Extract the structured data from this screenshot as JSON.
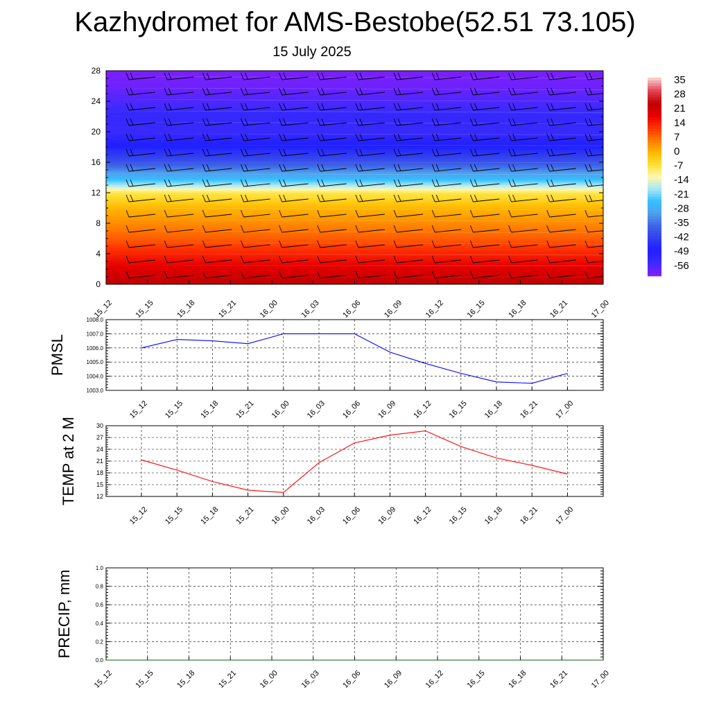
{
  "header": {
    "title": "Kazhydromet for AMS-Bestobe(52.51 73.105)",
    "subtitle": "15 July 2025"
  },
  "chart_data": [
    {
      "type": "heatmap",
      "title": "",
      "xlabel": "",
      "ylabel": "",
      "x": [
        "15_12",
        "15_15",
        "15_18",
        "15_21",
        "16_00",
        "16_03",
        "16_06",
        "16_09",
        "16_12",
        "16_15",
        "16_18",
        "16_21",
        "17_00"
      ],
      "y_ticks": [
        0,
        4,
        8,
        12,
        16,
        20,
        24,
        28
      ],
      "ylim": [
        0,
        28
      ],
      "colorbar_labels": [
        "35",
        "28",
        "21",
        "14",
        "7",
        "0",
        "-7",
        "-14",
        "-21",
        "-28",
        "-35",
        "-42",
        "-49",
        "-56"
      ],
      "colorbar_values": [
        35,
        28,
        21,
        14,
        7,
        0,
        -7,
        -14,
        -21,
        -28,
        -35,
        -42,
        -49,
        -56
      ],
      "colormap": [
        "#7a1fff",
        "#3a2bff",
        "#1f1fff",
        "#3340f0",
        "#3f66e6",
        "#4fa0ee",
        "#33c0ff",
        "#a8e6f6",
        "#fff9b0",
        "#ffe033",
        "#ffb800",
        "#ff7a00",
        "#ff3300",
        "#e60000",
        "#c00000",
        "#e04050",
        "#f8c8c8"
      ],
      "temperature_profile": [
        {
          "level": 0,
          "value": 24
        },
        {
          "level": 2,
          "value": 19
        },
        {
          "level": 4,
          "value": 14
        },
        {
          "level": 6,
          "value": 9
        },
        {
          "level": 8,
          "value": 5
        },
        {
          "level": 10,
          "value": 1
        },
        {
          "level": 12,
          "value": -6
        },
        {
          "level": 13,
          "value": -16
        },
        {
          "level": 14,
          "value": -24
        },
        {
          "level": 16,
          "value": -36
        },
        {
          "level": 18,
          "value": -44
        },
        {
          "level": 20,
          "value": -50
        },
        {
          "level": 22,
          "value": -49
        },
        {
          "level": 24,
          "value": -52
        },
        {
          "level": 26,
          "value": -55
        },
        {
          "level": 28,
          "value": -56
        }
      ],
      "wind_barbs": true,
      "grid": false
    },
    {
      "type": "line",
      "title": "",
      "xlabel": "",
      "ylabel": "PMSL",
      "x": [
        "15_12",
        "15_15",
        "15_18",
        "15_21",
        "16_00",
        "16_03",
        "16_06",
        "16_09",
        "16_12",
        "16_15",
        "16_18",
        "16_21",
        "17_00"
      ],
      "y_ticks": [
        "1003.0",
        "1004.0",
        "1005.0",
        "1006.0",
        "1007.0",
        "1008.0"
      ],
      "ylim": [
        1003,
        1008
      ],
      "series": [
        {
          "values": [
            1006.0,
            1006.6,
            1006.5,
            1006.3,
            1007.0,
            1007.0,
            1007.0,
            1005.7,
            1004.9,
            1004.2,
            1003.6,
            1003.5,
            1004.2
          ],
          "color": "#0000ff"
        }
      ],
      "grid": true
    },
    {
      "type": "line",
      "title": "",
      "xlabel": "",
      "ylabel": "TEMP at 2 M",
      "x": [
        "15_12",
        "15_15",
        "15_18",
        "15_21",
        "16_00",
        "16_03",
        "16_06",
        "16_09",
        "16_12",
        "16_15",
        "16_18",
        "16_21",
        "17_00"
      ],
      "y_ticks": [
        "12",
        "15",
        "18",
        "21",
        "24",
        "27",
        "30"
      ],
      "ylim": [
        12,
        30
      ],
      "series": [
        {
          "values": [
            21.3,
            18.7,
            15.8,
            13.6,
            13.0,
            20.6,
            25.6,
            27.6,
            28.7,
            24.7,
            21.8,
            19.9,
            17.7
          ],
          "color": "#ff0000"
        }
      ],
      "grid": true
    },
    {
      "type": "line",
      "title": "",
      "xlabel": "",
      "ylabel": "PRECIP, mm",
      "x": [
        "15_12",
        "15_15",
        "15_18",
        "15_21",
        "16_00",
        "16_03",
        "16_06",
        "16_09",
        "16_12",
        "16_15",
        "16_18",
        "16_21",
        "17_00"
      ],
      "y_ticks": [
        "0.0",
        "0.2",
        "0.4",
        "0.6",
        "0.8",
        "1.0"
      ],
      "ylim": [
        0,
        1
      ],
      "series": [
        {
          "values": [
            0,
            0,
            0,
            0,
            0,
            0,
            0,
            0,
            0,
            0,
            0,
            0,
            0
          ],
          "color": "#006400"
        }
      ],
      "grid": true
    }
  ]
}
